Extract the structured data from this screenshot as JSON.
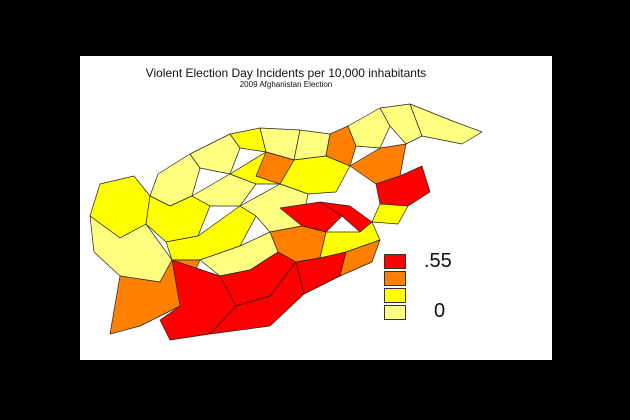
{
  "title": "Violent Election Day Incidents per 10,000 inhabitants",
  "subtitle": "2009 Afghanistan Election",
  "legend": {
    "high_label": ".55",
    "low_label": "0",
    "colors": [
      "#ff0000",
      "#ff8000",
      "#ffff00",
      "#ffff80"
    ]
  },
  "palette": {
    "red": "#ff0000",
    "orange": "#ff8000",
    "yellow": "#ffff00",
    "pale": "#ffff80"
  }
}
